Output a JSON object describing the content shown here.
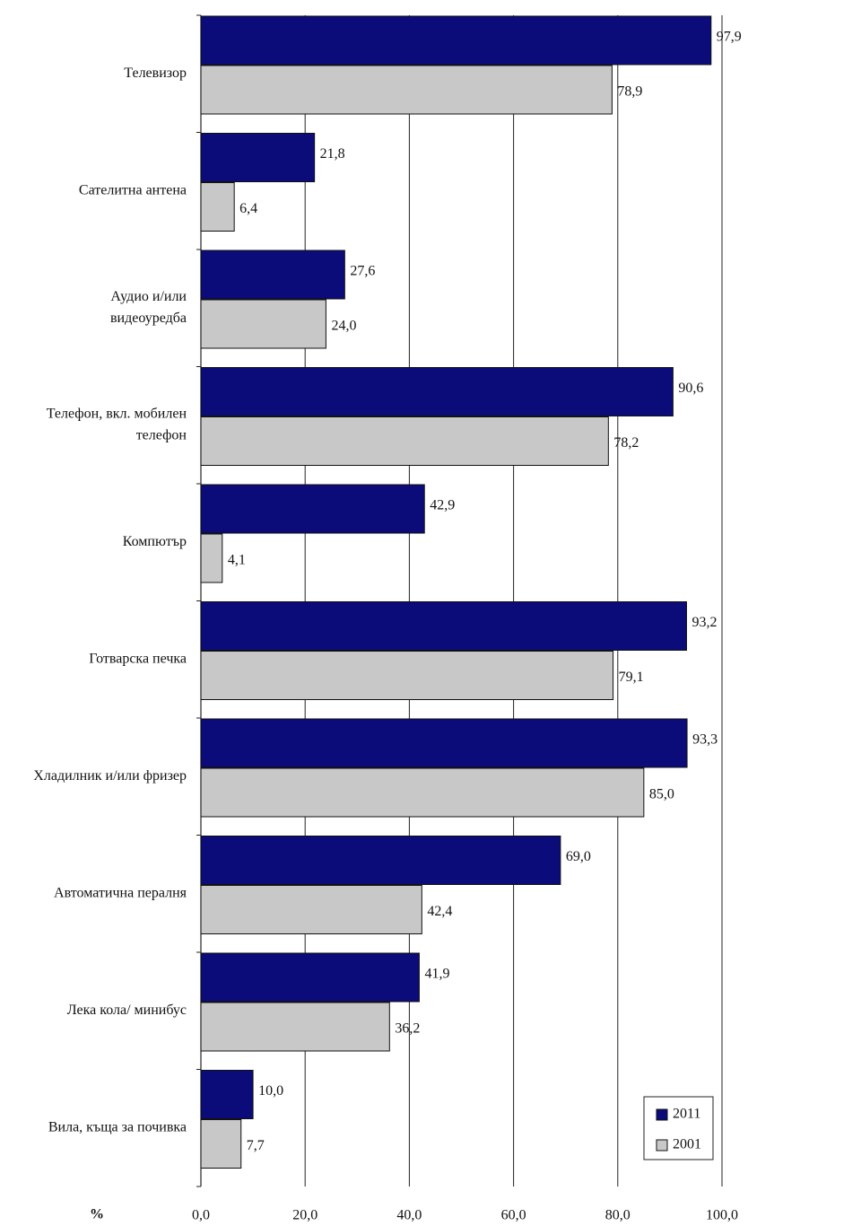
{
  "chart_data": {
    "type": "hbar",
    "xlabel": "%",
    "categories": [
      "Телевизор",
      "Сателитна антена",
      [
        "Аудио и/или",
        "видеоуредба"
      ],
      [
        "Телефон, вкл. мобилен",
        "телефон"
      ],
      "Компютър",
      "Готварска печка",
      "Хладилник и/или фризер",
      "Автоматична пералня",
      "Лека кола/ минибус",
      "Вила, къща за почивка"
    ],
    "series": [
      {
        "name": "2011",
        "color": "#0b0b7a",
        "values": [
          97.9,
          21.8,
          27.6,
          90.6,
          42.9,
          93.2,
          93.3,
          69.0,
          41.9,
          10.0
        ],
        "value_labels": [
          "97,9",
          "21,8",
          "27,6",
          "90,6",
          "42,9",
          "93,2",
          "93,3",
          "69,0",
          "41,9",
          "10,0"
        ]
      },
      {
        "name": "2001",
        "color": "#c8c8c8",
        "values": [
          78.9,
          6.4,
          24.0,
          78.2,
          4.1,
          79.1,
          85.0,
          42.4,
          36.2,
          7.7
        ],
        "value_labels": [
          "78,9",
          "6,4",
          "24,0",
          "78,2",
          "4,1",
          "79,1",
          "85,0",
          "42,4",
          "36,2",
          "7,7"
        ]
      }
    ],
    "xlim": [
      0,
      100
    ],
    "xticks": [
      {
        "value": 0,
        "label": "0,0"
      },
      {
        "value": 20,
        "label": "20,0"
      },
      {
        "value": 40,
        "label": "40,0"
      },
      {
        "value": 60,
        "label": "60,0"
      },
      {
        "value": 80,
        "label": "80,0"
      },
      {
        "value": 100,
        "label": "100,0"
      }
    ],
    "grid": true,
    "legend": "lower right"
  }
}
